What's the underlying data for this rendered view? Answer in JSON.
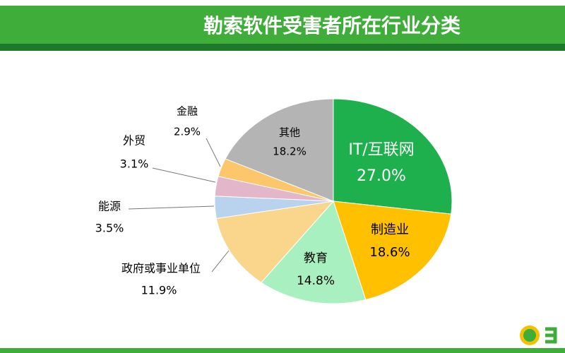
{
  "chart_data": {
    "type": "pie",
    "title": "勒索软件受害者所在行业分类",
    "categories": [
      "IT/互联网",
      "制造业",
      "教育",
      "政府或事业单位",
      "能源",
      "外贸",
      "金融",
      "其他"
    ],
    "values": [
      27.0,
      18.6,
      14.8,
      11.9,
      3.5,
      3.1,
      2.9,
      18.2
    ],
    "value_labels": [
      "27.0%",
      "18.6%",
      "14.8%",
      "11.9%",
      "3.5%",
      "3.1%",
      "2.9%",
      "18.2%"
    ],
    "colors": [
      "#1fb04e",
      "#ffc000",
      "#a8f0c0",
      "#f9d68c",
      "#b9d3ef",
      "#e3b6c9",
      "#fcc66a",
      "#b4b4b4"
    ]
  }
}
